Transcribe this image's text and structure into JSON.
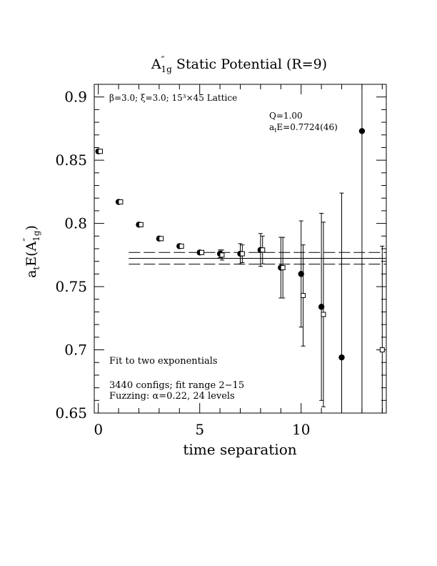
{
  "chart_data": {
    "type": "scatter",
    "title": {
      "main": "A",
      "sup": "″",
      "sub": "1g",
      "rest": " Static Potential (R=9)"
    },
    "xlabel": "time separation",
    "ylabel": {
      "a": "a",
      "a_sub": "t",
      "mid": "E(A",
      "sup": "″",
      "sub": "1g",
      "end": ")"
    },
    "xlim": [
      -0.2,
      14.2
    ],
    "ylim": [
      0.65,
      0.91
    ],
    "x_ticks": [
      0,
      5,
      10
    ],
    "x_tick_labels": [
      "0",
      "5",
      "10"
    ],
    "y_ticks": [
      0.65,
      0.7,
      0.75,
      0.8,
      0.85,
      0.9
    ],
    "y_tick_labels": [
      "0.65",
      "0.7",
      "0.75",
      "0.8",
      "0.85",
      "0.9"
    ],
    "top_left_label": "β=3.0; ξ=3.0; 15³×45 Lattice",
    "fit_info": {
      "q": "Q=1.00",
      "energy_a": "a",
      "energy_sub": "t",
      "energy_rest": "E=0.7724(46)"
    },
    "bottom_notes": {
      "fit_type": "Fit to two exponentials",
      "configs": "3440 configs; fit range 2−15",
      "fuzzing": "Fuzzing: α=0.22, 24 levels"
    },
    "fit_band": {
      "x_range": [
        1.5,
        14.2
      ],
      "center": 0.7724,
      "error": 0.0046
    },
    "series": [
      {
        "marker": "filled-circle",
        "points": [
          {
            "x": 0,
            "y": 0.857,
            "err": 0.0015
          },
          {
            "x": 1,
            "y": 0.817,
            "err": 0.0015
          },
          {
            "x": 2,
            "y": 0.799,
            "err": 0.0015
          },
          {
            "x": 3,
            "y": 0.788,
            "err": 0.0015
          },
          {
            "x": 4,
            "y": 0.782,
            "err": 0.0015
          },
          {
            "x": 5,
            "y": 0.777,
            "err": 0.0015
          },
          {
            "x": 6,
            "y": 0.776,
            "err": 0.003
          },
          {
            "x": 7,
            "y": 0.776,
            "err": 0.008
          },
          {
            "x": 8,
            "y": 0.779,
            "err": 0.013
          },
          {
            "x": 9,
            "y": 0.765,
            "err": 0.024
          },
          {
            "x": 10,
            "y": 0.76,
            "err": 0.042
          },
          {
            "x": 11,
            "y": 0.734,
            "err": 0.074
          },
          {
            "x": 12,
            "y": 0.694,
            "err": 0.13
          },
          {
            "x": 13,
            "y": 0.873,
            "err": 0.33
          }
        ]
      },
      {
        "marker": "open-square",
        "points": [
          {
            "x": 0.1,
            "y": 0.857,
            "err": 0.0015
          },
          {
            "x": 1.1,
            "y": 0.817,
            "err": 0.0015
          },
          {
            "x": 2.1,
            "y": 0.799,
            "err": 0.0015
          },
          {
            "x": 3.1,
            "y": 0.788,
            "err": 0.0015
          },
          {
            "x": 4.1,
            "y": 0.782,
            "err": 0.0015
          },
          {
            "x": 5.1,
            "y": 0.777,
            "err": 0.0015
          },
          {
            "x": 6.1,
            "y": 0.775,
            "err": 0.004
          },
          {
            "x": 7.1,
            "y": 0.776,
            "err": 0.007
          },
          {
            "x": 8.1,
            "y": 0.779,
            "err": 0.011
          },
          {
            "x": 9.1,
            "y": 0.765,
            "err": 0.024
          },
          {
            "x": 10.1,
            "y": 0.743,
            "err": 0.04
          },
          {
            "x": 11.1,
            "y": 0.728,
            "err": 0.073
          },
          {
            "x": 14.0,
            "y": 0.7,
            "err": 0.082
          }
        ]
      }
    ]
  }
}
